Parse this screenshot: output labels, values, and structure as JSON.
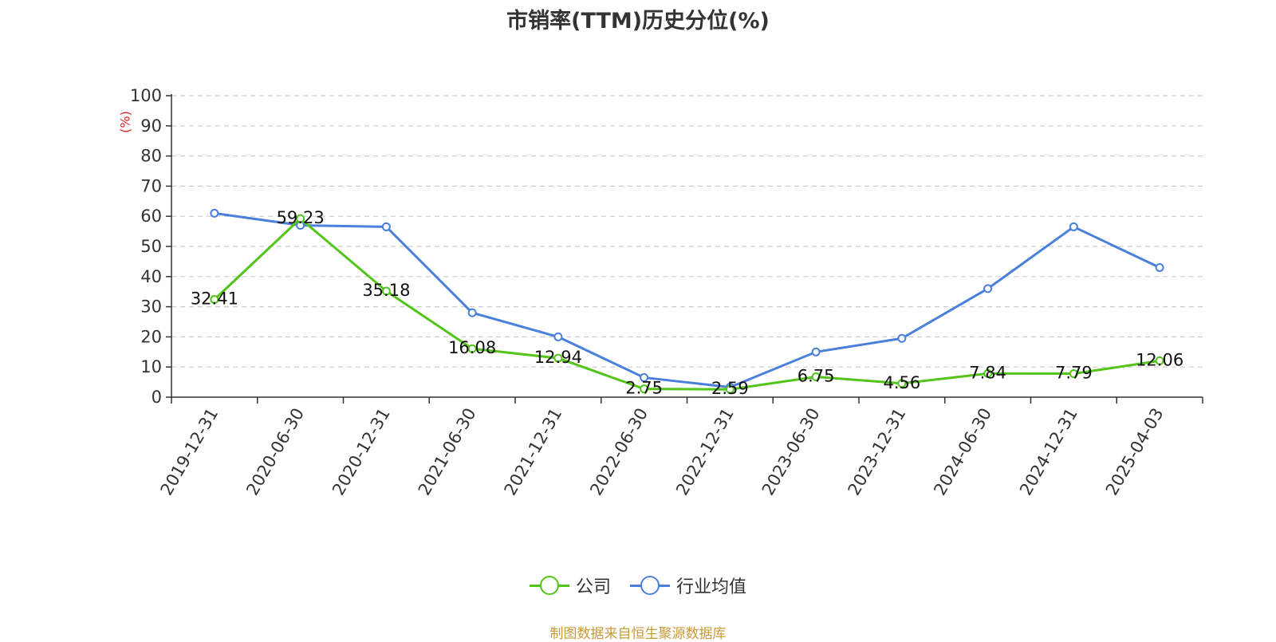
{
  "chart_data": {
    "type": "line",
    "title": "市销率(TTM)历史分位(%)",
    "ylabel": "(%)",
    "xlabel": "",
    "ylim": [
      0,
      100
    ],
    "yticks": [
      "0",
      "10",
      "20",
      "30",
      "40",
      "50",
      "60",
      "70",
      "80",
      "90",
      "100"
    ],
    "categories": [
      "2019-12-31",
      "2020-06-30",
      "2020-12-31",
      "2021-06-30",
      "2021-12-31",
      "2022-06-30",
      "2022-12-31",
      "2023-06-30",
      "2023-12-31",
      "2024-06-30",
      "2024-12-31",
      "2025-04-03"
    ],
    "series": [
      {
        "name": "公司",
        "color": "#52c41a",
        "values": [
          32.41,
          59.23,
          35.18,
          16.08,
          12.94,
          2.75,
          2.59,
          6.75,
          4.56,
          7.84,
          7.79,
          12.06
        ],
        "labels": [
          "32.41",
          "59.23",
          "35.18",
          "16.08",
          "12.94",
          "2.75",
          "2.59",
          "6.75",
          "4.56",
          "7.84",
          "7.79",
          "12.06"
        ]
      },
      {
        "name": "行业均值",
        "color": "#4a7fdc",
        "values": [
          61.0,
          57.0,
          56.5,
          28.0,
          20.0,
          6.5,
          3.3,
          15.0,
          19.5,
          36.0,
          56.5,
          43.0
        ]
      }
    ],
    "grid": true,
    "legend_position": "bottom"
  },
  "source_note": "制图数据来自恒生聚源数据库"
}
